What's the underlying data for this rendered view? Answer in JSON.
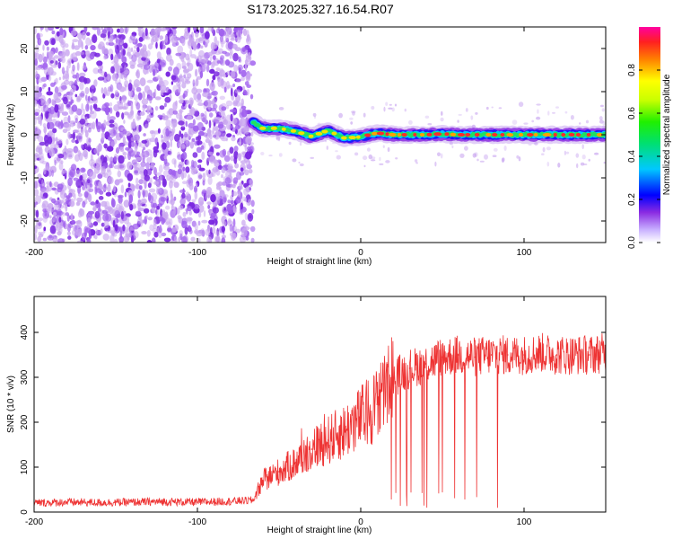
{
  "title": "S173.2025.327.16.54.R07",
  "colors": {
    "snr_line": "#ee3333",
    "noise_purple": "#7a28e0",
    "noise_light": "#c9a6f0",
    "axis": "#000000"
  },
  "chart_data": [
    {
      "id": "spectrogram",
      "type": "heatmap",
      "title": "S173.2025.327.16.54.R07",
      "xlabel": "Height of straight line (km)",
      "ylabel": "Frequency (Hz)",
      "xlim": [
        -200,
        150
      ],
      "ylim": [
        -25,
        25
      ],
      "xticks": [
        -200,
        -100,
        0,
        100
      ],
      "yticks": [
        -20,
        -10,
        0,
        10,
        20
      ],
      "noise_region": {
        "x_from": -200,
        "x_to": -66
      },
      "signal_track": {
        "x": [
          -66,
          -60,
          -50,
          -40,
          -30,
          -20,
          -10,
          0,
          10,
          20,
          30,
          40,
          50,
          60,
          70,
          80,
          90,
          100,
          110,
          120,
          130,
          140,
          150
        ],
        "freq_hz": [
          3.0,
          1.5,
          1.5,
          0.8,
          -0.4,
          1.0,
          -0.8,
          -0.5,
          0.4,
          0.0,
          0.0,
          0.0,
          0.2,
          0.0,
          0.0,
          0.0,
          0.0,
          0.0,
          0.0,
          0.0,
          0.0,
          0.0,
          0.0
        ]
      },
      "colorbar": {
        "label": "Normalized spectral amplitude",
        "ticks": [
          0.0,
          0.2,
          0.4,
          0.6,
          0.8
        ],
        "range": [
          0,
          1
        ]
      }
    },
    {
      "id": "snr",
      "type": "line",
      "xlabel": "Height of straight line (km)",
      "ylabel": "SNR (10 * v/v)",
      "xlim": [
        -200,
        150
      ],
      "ylim": [
        0,
        480
      ],
      "xticks": [
        -200,
        -100,
        0,
        100
      ],
      "yticks": [
        0,
        100,
        200,
        300,
        400
      ],
      "series": [
        {
          "name": "SNR",
          "x": [
            -200,
            -180,
            -160,
            -140,
            -120,
            -100,
            -80,
            -66,
            -60,
            -50,
            -40,
            -30,
            -20,
            -10,
            0,
            10,
            20,
            30,
            40,
            50,
            60,
            70,
            80,
            90,
            100,
            110,
            120,
            130,
            140,
            150
          ],
          "values": [
            20,
            22,
            21,
            22,
            23,
            22,
            24,
            26,
            70,
            90,
            110,
            140,
            160,
            180,
            210,
            240,
            300,
            320,
            330,
            345,
            350,
            345,
            350,
            350,
            350,
            355,
            350,
            350,
            350,
            355
          ]
        }
      ]
    }
  ]
}
